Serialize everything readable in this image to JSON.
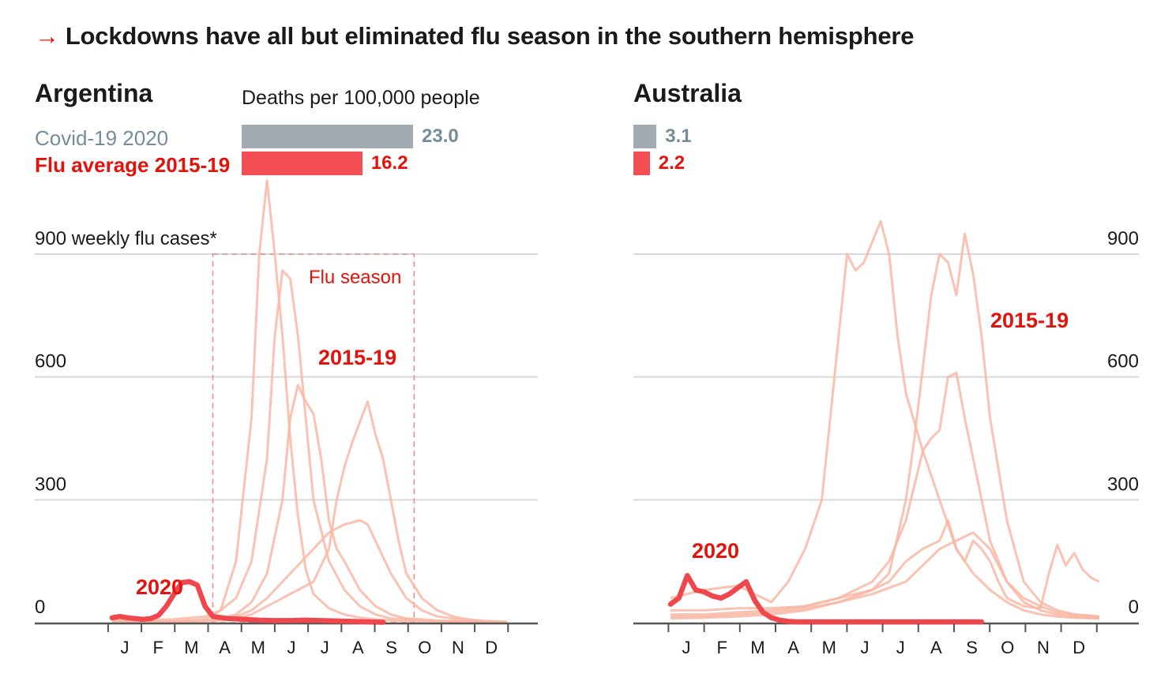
{
  "headline": {
    "arrow": "→",
    "text": "Lockdowns have all but eliminated flu season in the southern hemisphere"
  },
  "legend": {
    "units": "Deaths per 100,000 people",
    "covid": "Covid-19 2020",
    "flu": "Flu average 2015-19"
  },
  "colors": {
    "covid": "#a2abb1",
    "flu": "#f44f54",
    "past_years": "#f9b7a4",
    "line_2020": "#f0474d",
    "grid": "#d9d9d9",
    "season_box": "#f08c8f",
    "accent": "#e3120b"
  },
  "months": [
    "J",
    "F",
    "M",
    "A",
    "M",
    "J",
    "J",
    "A",
    "S",
    "O",
    "N",
    "D"
  ],
  "chart_data": [
    {
      "type": "line",
      "title": "Argentina",
      "ylabel": "900 weekly flu cases*",
      "yticks": [
        0,
        300,
        600,
        900
      ],
      "ytick_labels": [
        "0",
        "300",
        "600"
      ],
      "ylim": [
        0,
        1000
      ],
      "x_unit": "week of year",
      "xlim": [
        1,
        52
      ],
      "deaths_per_100k": {
        "covid_2020": 23.0,
        "flu_avg_2015_19": 16.2,
        "covid_label": "23.0",
        "flu_label": "16.2"
      },
      "flu_season": {
        "start_week": 14,
        "end_week": 40,
        "label": "Flu season"
      },
      "annotations": {
        "past": "2015-19",
        "current": "2020"
      },
      "series_past": [
        {
          "x": [
            1,
            5,
            9,
            13,
            15,
            17,
            19,
            20,
            21,
            22,
            23,
            24,
            25,
            26,
            27,
            29,
            31,
            33,
            35,
            37,
            39,
            41,
            43,
            45,
            47,
            49,
            52
          ],
          "y": [
            2,
            2,
            3,
            8,
            30,
            150,
            500,
            900,
            1080,
            900,
            700,
            450,
            260,
            130,
            70,
            35,
            20,
            12,
            8,
            5,
            4,
            3,
            3,
            2,
            2,
            2,
            1
          ]
        },
        {
          "x": [
            1,
            5,
            9,
            13,
            15,
            17,
            19,
            21,
            22,
            23,
            24,
            25,
            26,
            27,
            29,
            31,
            33,
            35,
            37,
            39,
            41,
            43,
            45,
            47,
            49,
            52
          ],
          "y": [
            5,
            5,
            8,
            15,
            30,
            60,
            150,
            400,
            700,
            860,
            840,
            700,
            500,
            300,
            150,
            80,
            40,
            20,
            10,
            8,
            5,
            4,
            3,
            2,
            2,
            1
          ]
        },
        {
          "x": [
            1,
            5,
            9,
            13,
            15,
            17,
            19,
            21,
            23,
            24,
            25,
            26,
            27,
            28,
            29,
            30,
            31,
            33,
            35,
            37,
            39,
            41,
            43,
            45,
            47,
            49,
            52
          ],
          "y": [
            2,
            2,
            3,
            5,
            10,
            20,
            50,
            120,
            300,
            500,
            580,
            540,
            510,
            400,
            250,
            180,
            150,
            80,
            40,
            20,
            10,
            8,
            5,
            4,
            3,
            2,
            1
          ]
        },
        {
          "x": [
            1,
            5,
            9,
            13,
            15,
            17,
            19,
            21,
            23,
            25,
            27,
            29,
            30,
            31,
            32,
            33,
            34,
            35,
            36,
            37,
            38,
            39,
            41,
            43,
            45,
            47,
            49,
            52
          ],
          "y": [
            1,
            1,
            2,
            3,
            5,
            10,
            20,
            40,
            60,
            80,
            100,
            180,
            300,
            380,
            440,
            490,
            540,
            460,
            400,
            300,
            200,
            120,
            60,
            30,
            15,
            8,
            4,
            2
          ]
        },
        {
          "x": [
            1,
            5,
            9,
            13,
            15,
            17,
            19,
            21,
            23,
            25,
            27,
            29,
            31,
            33,
            34,
            35,
            36,
            37,
            39,
            41,
            43,
            45,
            47,
            49,
            52
          ],
          "y": [
            2,
            2,
            3,
            4,
            8,
            15,
            30,
            60,
            100,
            140,
            180,
            220,
            240,
            250,
            240,
            200,
            160,
            120,
            60,
            30,
            15,
            10,
            6,
            4,
            2
          ]
        }
      ],
      "series_2020": {
        "x": [
          1,
          2,
          3,
          4,
          5,
          6,
          7,
          8,
          9,
          10,
          11,
          12,
          13,
          14,
          16,
          18,
          20,
          22,
          24,
          26,
          28,
          30,
          32,
          34,
          36
        ],
        "y": [
          12,
          15,
          12,
          10,
          8,
          10,
          18,
          40,
          70,
          98,
          100,
          92,
          40,
          15,
          10,
          8,
          6,
          5,
          5,
          6,
          5,
          4,
          3,
          2,
          1
        ]
      }
    },
    {
      "type": "line",
      "title": "Australia",
      "yticks": [
        0,
        300,
        600,
        900
      ],
      "ytick_labels": [
        "0",
        "300",
        "600",
        "900"
      ],
      "ylim": [
        0,
        1000
      ],
      "x_unit": "week of year",
      "xlim": [
        1,
        52
      ],
      "deaths_per_100k": {
        "covid_2020": 3.1,
        "flu_avg_2015_19": 2.2,
        "covid_label": "3.1",
        "flu_label": "2.2"
      },
      "annotations": {
        "past": "2015-19",
        "current": "2020"
      },
      "series_past": [
        {
          "x": [
            1,
            3,
            5,
            7,
            9,
            11,
            13,
            15,
            17,
            19,
            20,
            21,
            22,
            23,
            24,
            25,
            26,
            27,
            28,
            29,
            31,
            33,
            35,
            37,
            39,
            41,
            43,
            45,
            47,
            49,
            52
          ],
          "y": [
            60,
            70,
            80,
            85,
            90,
            70,
            50,
            100,
            180,
            300,
            500,
            700,
            900,
            860,
            880,
            930,
            980,
            900,
            700,
            560,
            420,
            300,
            180,
            120,
            80,
            50,
            30,
            20,
            15,
            12,
            10
          ]
        },
        {
          "x": [
            1,
            5,
            9,
            13,
            17,
            21,
            25,
            27,
            29,
            30,
            31,
            32,
            33,
            34,
            35,
            36,
            37,
            38,
            39,
            41,
            43,
            45,
            47,
            49,
            52
          ],
          "y": [
            10,
            12,
            15,
            20,
            30,
            50,
            80,
            120,
            300,
            450,
            620,
            800,
            900,
            880,
            800,
            950,
            850,
            700,
            500,
            250,
            100,
            50,
            30,
            20,
            15
          ]
        },
        {
          "x": [
            1,
            5,
            9,
            13,
            17,
            21,
            25,
            27,
            29,
            31,
            32,
            33,
            34,
            35,
            36,
            37,
            38,
            39,
            41,
            43,
            45,
            47,
            49,
            52
          ],
          "y": [
            20,
            20,
            25,
            30,
            40,
            60,
            100,
            150,
            250,
            420,
            450,
            470,
            600,
            610,
            500,
            400,
            300,
            200,
            100,
            60,
            40,
            25,
            20,
            15
          ]
        },
        {
          "x": [
            1,
            5,
            9,
            13,
            17,
            21,
            25,
            27,
            29,
            31,
            33,
            34,
            35,
            36,
            37,
            38,
            39,
            40,
            41,
            43,
            45,
            46,
            47,
            48,
            49,
            50,
            51,
            52
          ],
          "y": [
            30,
            30,
            35,
            35,
            40,
            60,
            80,
            100,
            150,
            180,
            200,
            250,
            180,
            150,
            200,
            180,
            150,
            100,
            60,
            40,
            35,
            120,
            190,
            140,
            170,
            130,
            110,
            100
          ]
        },
        {
          "x": [
            1,
            5,
            9,
            13,
            17,
            21,
            25,
            29,
            31,
            33,
            35,
            37,
            39,
            41,
            43,
            45,
            47,
            49,
            52
          ],
          "y": [
            15,
            15,
            20,
            25,
            35,
            50,
            70,
            100,
            140,
            180,
            200,
            220,
            180,
            100,
            50,
            30,
            20,
            15,
            10
          ]
        }
      ],
      "series_2020": {
        "x": [
          1,
          2,
          3,
          4,
          5,
          6,
          7,
          8,
          9,
          10,
          11,
          12,
          13,
          14,
          15,
          16,
          18,
          20,
          22,
          24,
          26,
          28,
          30,
          32,
          34,
          36,
          38
        ],
        "y": [
          45,
          60,
          115,
          80,
          75,
          65,
          60,
          70,
          85,
          100,
          55,
          25,
          12,
          6,
          3,
          2,
          2,
          2,
          2,
          2,
          2,
          2,
          2,
          2,
          2,
          2,
          2
        ]
      }
    }
  ]
}
